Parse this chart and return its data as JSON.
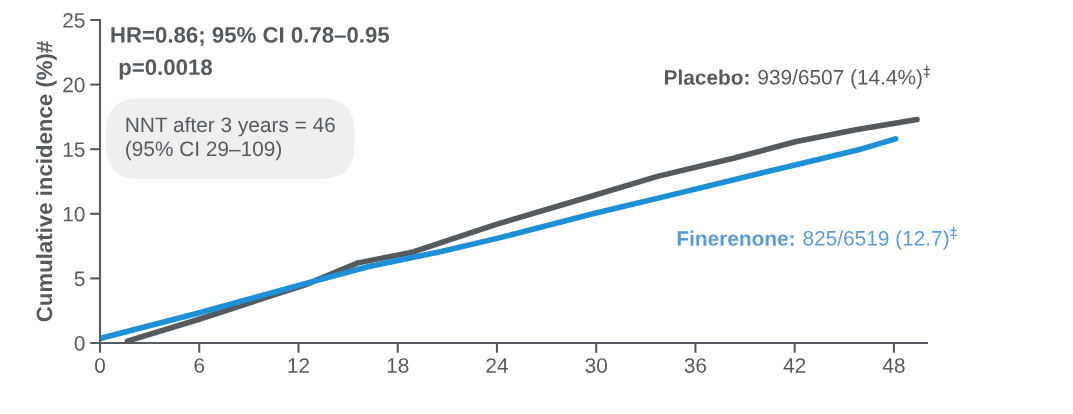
{
  "chart_data": {
    "type": "line",
    "ylabel": "Cumulative incidence (%)#",
    "xlim": [
      0,
      50
    ],
    "ylim": [
      0,
      25
    ],
    "xticks": [
      0,
      6,
      12,
      18,
      24,
      30,
      36,
      42,
      48
    ],
    "yticks": [
      0,
      5,
      10,
      15,
      20,
      25
    ],
    "grid": false,
    "legend": false,
    "series": [
      {
        "name": "Placebo:",
        "color": "#555a5f",
        "x": [
          1.66,
          5.9,
          12.4,
          15.6,
          18.8,
          24,
          29.8,
          33.7,
          38.3,
          42.1,
          45.7,
          49.4
        ],
        "values": [
          0.15,
          1.8,
          4.5,
          6.2,
          7.0,
          9.2,
          11.4,
          12.9,
          14.3,
          15.6,
          16.5,
          17.3
        ]
      },
      {
        "name": "Finerenone:",
        "color": "#1e90d8",
        "x": [
          0,
          5.9,
          12.4,
          16.2,
          20.7,
          24,
          29.8,
          35,
          39.5,
          46,
          48.1
        ],
        "values": [
          0.35,
          2.3,
          4.6,
          5.9,
          7.1,
          8.1,
          10.0,
          11.6,
          13.0,
          15.0,
          15.8
        ]
      }
    ],
    "annotations": [
      "HR=0.86; 95% CI 0.78–0.95",
      "p=0.0018",
      "NNT after 3 years = 46\n(95% CI 29–109)",
      "939/6507 (14.4%)$^{‡}$",
      "825/6519 (12.7)$^{‡}$"
    ]
  }
}
